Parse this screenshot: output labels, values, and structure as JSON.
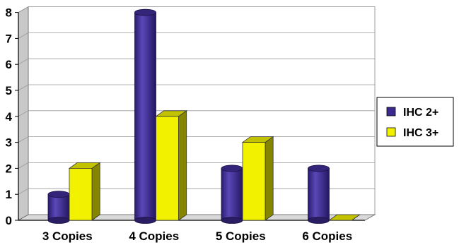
{
  "chart_data": {
    "type": "bar",
    "title": "",
    "xlabel": "",
    "ylabel": "",
    "categories": [
      "3 Copies",
      "4 Copies",
      "5 Copies",
      "6 Copies"
    ],
    "series": [
      {
        "name": "IHC 2+",
        "values": [
          1,
          8,
          2,
          2
        ],
        "color": "#3d2a8f"
      },
      {
        "name": "IHC 3+",
        "values": [
          2,
          4,
          3,
          0
        ],
        "color": "#f2f200"
      }
    ],
    "ylim": [
      0,
      8
    ],
    "yticks": [
      "0",
      "1",
      "2",
      "3",
      "4",
      "5",
      "6",
      "7",
      "8"
    ],
    "grid": true,
    "legend": "right",
    "style": "3d"
  }
}
